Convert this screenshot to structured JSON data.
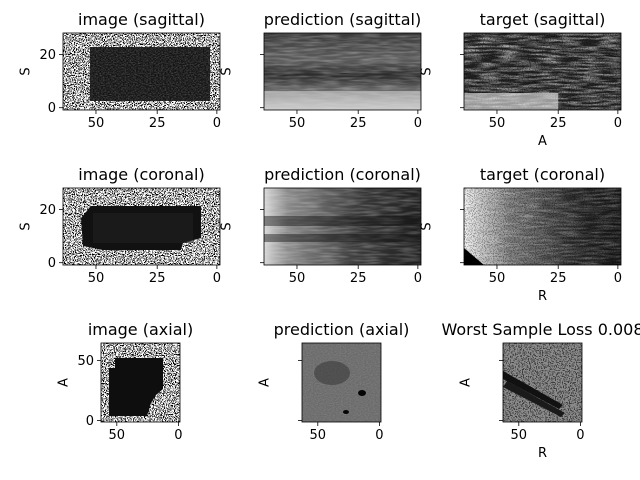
{
  "panels": [
    {
      "id": "p1",
      "title": "image (sagittal)",
      "ylabel": "S",
      "xlabel": "",
      "xticks": [
        "50",
        "25",
        "0"
      ],
      "yticks": [
        "20",
        "0"
      ],
      "kind": "noise-rect"
    },
    {
      "id": "p2",
      "title": "prediction (sagittal)",
      "ylabel": "S",
      "xlabel": "",
      "xticks": [
        "50",
        "25",
        "0"
      ],
      "yticks": [],
      "kind": "pred-sag"
    },
    {
      "id": "p3",
      "title": "target (sagittal)",
      "ylabel": "S",
      "xlabel": "A",
      "xticks": [
        "50",
        "25",
        "0"
      ],
      "yticks": [],
      "kind": "target-sag"
    },
    {
      "id": "p4",
      "title": "image (coronal)",
      "ylabel": "S",
      "xlabel": "",
      "xticks": [
        "50",
        "25",
        "0"
      ],
      "yticks": [
        "20",
        "0"
      ],
      "kind": "noise-rect2"
    },
    {
      "id": "p5",
      "title": "prediction (coronal)",
      "ylabel": "S",
      "xlabel": "",
      "xticks": [
        "50",
        "25",
        "0"
      ],
      "yticks": [],
      "kind": "pred-cor"
    },
    {
      "id": "p6",
      "title": "target (coronal)",
      "ylabel": "S",
      "xlabel": "R",
      "xticks": [
        "50",
        "25",
        "0"
      ],
      "yticks": [],
      "kind": "target-cor"
    },
    {
      "id": "p7",
      "title": "image (axial)",
      "ylabel": "A",
      "xlabel": "",
      "xticks": [
        "50",
        "0"
      ],
      "yticks": [
        "50",
        "0"
      ],
      "kind": "noise-axial"
    },
    {
      "id": "p8",
      "title": "prediction (axial)",
      "ylabel": "A",
      "xlabel": "",
      "xticks": [
        "50",
        "0"
      ],
      "yticks": [],
      "kind": "pred-axial"
    },
    {
      "id": "p9",
      "title": "Worst Sample Loss 0.008",
      "ylabel": "A",
      "xlabel": "R",
      "xticks": [
        "50",
        "0"
      ],
      "yticks": [],
      "kind": "target-axial"
    }
  ]
}
